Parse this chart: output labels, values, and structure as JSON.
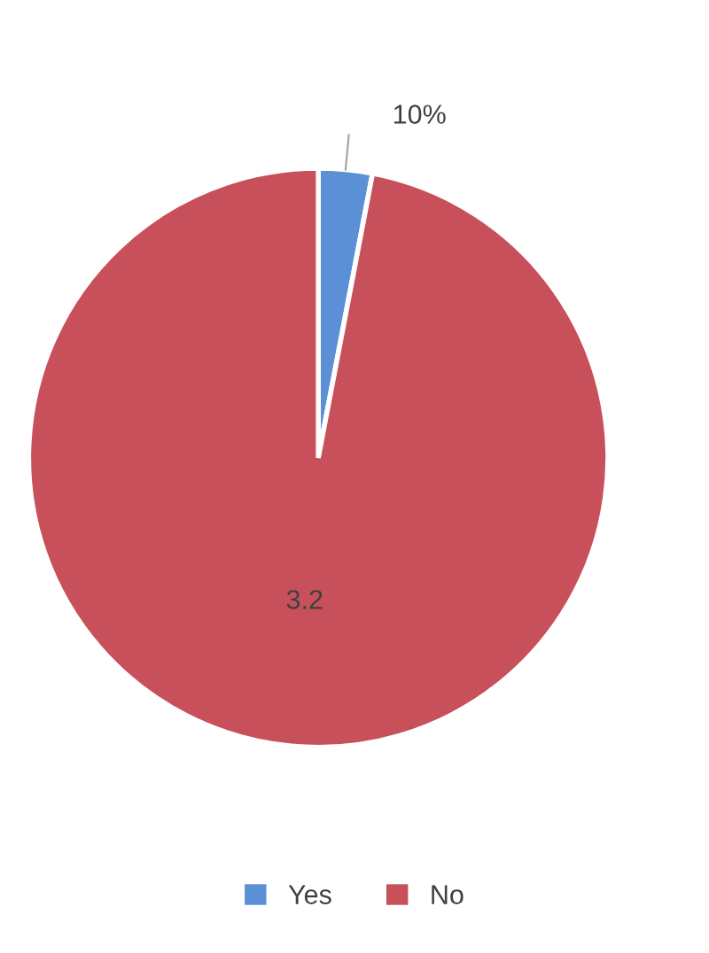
{
  "chart_data": {
    "type": "pie",
    "categories": [
      "Yes",
      "No"
    ],
    "values": [
      3,
      97
    ],
    "colors": [
      "#5b8fd6",
      "#c8505a"
    ],
    "annotations": [
      "10%",
      "3.2"
    ],
    "legend": "bottom"
  }
}
